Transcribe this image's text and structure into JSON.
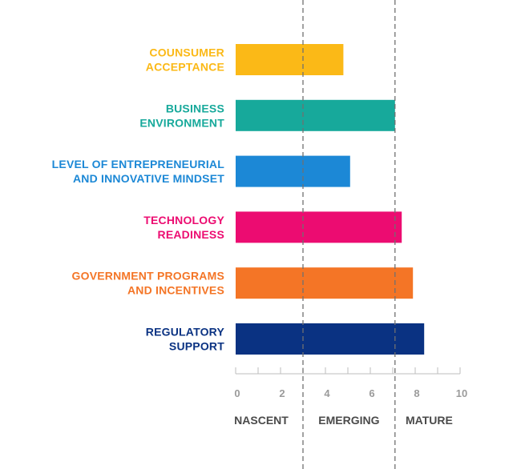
{
  "chart_data": {
    "type": "bar",
    "orientation": "horizontal",
    "title": "",
    "xlabel": "",
    "ylabel": "",
    "categories": [
      [
        "COUNSUMER",
        "ACCEPTANCE"
      ],
      [
        "BUSINESS",
        "ENVIRONMENT"
      ],
      [
        "LEVEL OF ENTREPRENEURIAL",
        "AND INNOVATIVE MINDSET"
      ],
      [
        "TECHNOLOGY",
        "READINESS"
      ],
      [
        "GOVERNMENT PROGRAMS",
        "AND INCENTIVES"
      ],
      [
        "REGULATORY",
        "SUPPORT"
      ]
    ],
    "values": [
      4.8,
      7.1,
      5.1,
      7.4,
      7.9,
      8.4
    ],
    "colors": [
      "#fbb917",
      "#17a99b",
      "#1c88d6",
      "#ec0c71",
      "#f47526",
      "#0a3282"
    ],
    "xlim": [
      0,
      10
    ],
    "x_ticks": [
      0,
      2,
      4,
      6,
      8,
      10
    ],
    "x_minor_ticks": [
      1,
      3,
      5,
      7,
      9
    ],
    "zones": [
      {
        "label": "NASCENT"
      },
      {
        "label": "EMERGING"
      },
      {
        "label": "MATURE"
      }
    ],
    "zone_dividers": [
      3,
      7.1
    ],
    "grid": false,
    "legend": "none"
  }
}
